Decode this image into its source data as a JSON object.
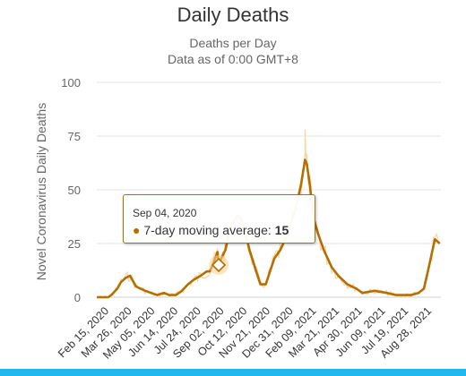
{
  "chart_data": {
    "type": "line",
    "title": "Daily Deaths",
    "subtitle": "Deaths per Day",
    "subtitle2": "Data as of 0:00 GMT+8",
    "ylabel": "Novel Coronavirus Daily Deaths",
    "ylim": [
      0,
      100
    ],
    "yticks": [
      0,
      25,
      50,
      75,
      100
    ],
    "x_tick_labels": [
      "Feb 15, 2020",
      "Mar 26, 2020",
      "May 05, 2020",
      "Jun 14, 2020",
      "Jul 24, 2020",
      "Sep 02, 2020",
      "Oct 12, 2020",
      "Nov 21, 2020",
      "Dec 31, 2020",
      "Feb 09, 2021",
      "Mar 21, 2021",
      "Apr 30, 2021",
      "Jun 09, 2021",
      "Jul 19, 2021",
      "Aug 28, 2021"
    ],
    "x_range": [
      "2020-02-15",
      "2021-09-07"
    ],
    "colors": {
      "line": "#b46f00",
      "daily": "#f7cf95"
    },
    "series": [
      {
        "name": "7-day moving average",
        "x": [
          "2020-02-15",
          "2020-03-05",
          "2020-03-10",
          "2020-03-20",
          "2020-03-26",
          "2020-04-03",
          "2020-04-10",
          "2020-04-20",
          "2020-05-05",
          "2020-05-15",
          "2020-05-25",
          "2020-06-05",
          "2020-06-14",
          "2020-06-25",
          "2020-07-05",
          "2020-07-15",
          "2020-07-24",
          "2020-08-05",
          "2020-08-15",
          "2020-08-20",
          "2020-08-25",
          "2020-09-02",
          "2020-09-04",
          "2020-09-08",
          "2020-09-15",
          "2020-09-25",
          "2020-10-05",
          "2020-10-12",
          "2020-10-18",
          "2020-10-25",
          "2020-11-05",
          "2020-11-12",
          "2020-11-21",
          "2020-11-28",
          "2020-12-05",
          "2020-12-15",
          "2020-12-25",
          "2020-12-31",
          "2021-01-10",
          "2021-01-18",
          "2021-01-25",
          "2021-01-28",
          "2021-02-02",
          "2021-02-05",
          "2021-02-09",
          "2021-02-15",
          "2021-02-25",
          "2021-03-10",
          "2021-03-21",
          "2021-04-05",
          "2021-04-20",
          "2021-04-30",
          "2021-05-20",
          "2021-06-09",
          "2021-06-25",
          "2021-07-10",
          "2021-07-19",
          "2021-08-01",
          "2021-08-10",
          "2021-08-18",
          "2021-08-28",
          "2021-09-05"
        ],
        "values": [
          0,
          0,
          1,
          4,
          7,
          9,
          10,
          5,
          3,
          2,
          1,
          2,
          1,
          1,
          3,
          6,
          8,
          10,
          12,
          12,
          15,
          21,
          15,
          18,
          22,
          34,
          38,
          36,
          30,
          22,
          12,
          6,
          6,
          12,
          18,
          22,
          28,
          33,
          42,
          52,
          64,
          62,
          52,
          44,
          36,
          30,
          22,
          14,
          10,
          6,
          4,
          2,
          3,
          2,
          1,
          1,
          1,
          2,
          4,
          14,
          27,
          25
        ]
      }
    ],
    "daily_max": 78,
    "tooltip": {
      "date": "Sep 04, 2020",
      "series": "7-day moving average",
      "value": "15"
    }
  }
}
